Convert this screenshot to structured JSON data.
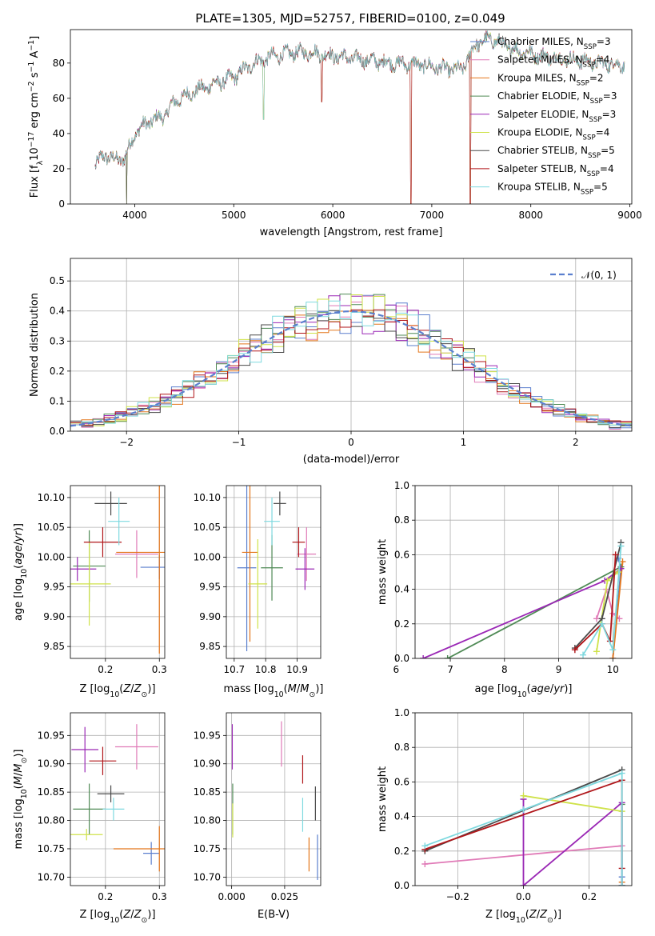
{
  "figure": {
    "title": "PLATE=1305, MJD=52757, FIBERID=0100, z=0.049"
  },
  "chart_data": [
    {
      "id": "spectrum",
      "type": "line",
      "xlabel": "wavelength [Angstrom, rest frame]",
      "ylabel": "Flux [f_λ 10^-17 erg cm^-2 s^-1 A^-1]",
      "xlim": [
        3350,
        9020
      ],
      "ylim": [
        0,
        99
      ],
      "xticks": [
        4000,
        5000,
        6000,
        7000,
        8000,
        9000
      ],
      "yticks": [
        0,
        20,
        40,
        60,
        80
      ],
      "grid": false,
      "legend_position": "right",
      "continuum": [
        [
          3600,
          22
        ],
        [
          3700,
          28
        ],
        [
          3800,
          25
        ],
        [
          3900,
          26
        ],
        [
          4000,
          40
        ],
        [
          4100,
          45
        ],
        [
          4200,
          48
        ],
        [
          4300,
          50
        ],
        [
          4400,
          58
        ],
        [
          4600,
          64
        ],
        [
          4800,
          68
        ],
        [
          5000,
          72
        ],
        [
          5200,
          80
        ],
        [
          5400,
          84
        ],
        [
          5600,
          86
        ],
        [
          5800,
          86
        ],
        [
          6000,
          84
        ],
        [
          6300,
          82
        ],
        [
          6600,
          80
        ],
        [
          6900,
          79
        ],
        [
          7100,
          77
        ],
        [
          7300,
          76
        ],
        [
          7450,
          91
        ],
        [
          7600,
          94
        ],
        [
          7800,
          88
        ],
        [
          8100,
          84
        ],
        [
          8400,
          82
        ],
        [
          8700,
          80
        ],
        [
          8950,
          79
        ]
      ],
      "dips": [
        [
          3918,
          0
        ],
        [
          5300,
          48
        ],
        [
          5890,
          58
        ],
        [
          6790,
          0
        ],
        [
          7390,
          0
        ]
      ],
      "series": [
        {
          "name": "Chabrier MILES",
          "nssp": "3",
          "color": "#5b7fce"
        },
        {
          "name": "Salpeter MILES",
          "nssp": "4",
          "color": "#e07ab7"
        },
        {
          "name": "Kroupa MILES",
          "nssp": "2",
          "color": "#e4761b"
        },
        {
          "name": "Chabrier ELODIE",
          "nssp": "3",
          "color": "#4f8a55"
        },
        {
          "name": "Salpeter ELODIE",
          "nssp": "3",
          "color": "#9a27b5"
        },
        {
          "name": "Kroupa ELODIE",
          "nssp": "4",
          "color": "#cfe24a"
        },
        {
          "name": "Chabrier STELIB",
          "nssp": "5",
          "color": "#4a4a4a"
        },
        {
          "name": "Salpeter STELIB",
          "nssp": "4",
          "color": "#b0161a"
        },
        {
          "name": "Kroupa STELIB",
          "nssp": "5",
          "color": "#7ed9df"
        }
      ],
      "legend_subscript": "SSP"
    },
    {
      "id": "residuals",
      "type": "line",
      "xlabel": "(data-model)/error",
      "ylabel": "Normed distribution",
      "xlim": [
        -2.5,
        2.5
      ],
      "ylim": [
        0,
        0.575
      ],
      "xticks": [
        -2,
        -1,
        0,
        1,
        2
      ],
      "yticks": [
        0.0,
        0.1,
        0.2,
        0.3,
        0.4,
        0.5
      ],
      "grid": true,
      "legend_position": "top-right",
      "gaussian_label": "𝒩(0, 1)",
      "gaussian_color": "#5b7fce",
      "bin_width": 0.1
    },
    {
      "id": "age_vs_Z",
      "type": "scatter",
      "xlabel": "Z [log10(Z/Z⊙)]",
      "ylabel": "age [log10(age/yr)]",
      "xlim": [
        0.135,
        0.31
      ],
      "ylim": [
        9.83,
        10.12
      ],
      "xticks": [
        0.2,
        0.3
      ],
      "yticks": [
        9.85,
        9.9,
        9.95,
        10.0,
        10.05,
        10.1
      ],
      "grid": true,
      "points": [
        {
          "x": 0.3,
          "y": 9.983,
          "xerr": 0.035,
          "yerr": 0.02,
          "color": "#5b7fce"
        },
        {
          "x": 0.258,
          "y": 10.005,
          "xerr": 0.04,
          "yerr": 0.04,
          "color": "#e07ab7"
        },
        {
          "x": 0.3,
          "y": 10.008,
          "xerr": 0.08,
          "yerr": 0.17,
          "color": "#e4761b"
        },
        {
          "x": 0.17,
          "y": 9.985,
          "xerr": 0.03,
          "yerr": 0.06,
          "color": "#4f8a55"
        },
        {
          "x": 0.148,
          "y": 9.98,
          "xerr": 0.035,
          "yerr": 0.02,
          "color": "#9a27b5"
        },
        {
          "x": 0.17,
          "y": 9.955,
          "xerr": 0.04,
          "yerr": 0.07,
          "color": "#cfe24a"
        },
        {
          "x": 0.21,
          "y": 10.09,
          "xerr": 0.03,
          "yerr": 0.02,
          "color": "#4a4a4a"
        },
        {
          "x": 0.195,
          "y": 10.025,
          "xerr": 0.035,
          "yerr": 0.025,
          "color": "#b0161a"
        },
        {
          "x": 0.225,
          "y": 10.06,
          "xerr": 0.02,
          "yerr": 0.04,
          "color": "#7ed9df"
        }
      ]
    },
    {
      "id": "age_vs_mass",
      "type": "scatter",
      "xlabel": "mass [log10(M/M⊙)]",
      "ylabel": "",
      "xlim": [
        10.675,
        10.975
      ],
      "ylim": [
        9.83,
        10.12
      ],
      "xticks": [
        10.7,
        10.8,
        10.9
      ],
      "yticks": [
        9.85,
        9.9,
        9.95,
        10.0,
        10.05,
        10.1
      ],
      "ytick_labels_visible": true,
      "grid": true,
      "points": [
        {
          "x": 10.74,
          "y": 9.982,
          "xerr": 0.03,
          "yerr": 0.14,
          "color": "#5b7fce"
        },
        {
          "x": 10.93,
          "y": 10.005,
          "xerr": 0.03,
          "yerr": 0.045,
          "color": "#e07ab7"
        },
        {
          "x": 10.75,
          "y": 10.008,
          "xerr": 0.025,
          "yerr": 0.15,
          "color": "#e4761b"
        },
        {
          "x": 10.82,
          "y": 9.982,
          "xerr": 0.035,
          "yerr": 0.055,
          "color": "#4f8a55"
        },
        {
          "x": 10.925,
          "y": 9.98,
          "xerr": 0.03,
          "yerr": 0.035,
          "color": "#9a27b5"
        },
        {
          "x": 10.775,
          "y": 9.955,
          "xerr": 0.03,
          "yerr": 0.075,
          "color": "#cfe24a"
        },
        {
          "x": 10.845,
          "y": 10.09,
          "xerr": 0.02,
          "yerr": 0.02,
          "color": "#4a4a4a"
        },
        {
          "x": 10.905,
          "y": 10.025,
          "xerr": 0.02,
          "yerr": 0.025,
          "color": "#b0161a"
        },
        {
          "x": 10.82,
          "y": 10.06,
          "xerr": 0.025,
          "yerr": 0.04,
          "color": "#7ed9df"
        }
      ]
    },
    {
      "id": "weight_vs_age",
      "type": "line",
      "xlabel": "age [log10(age/yr)]",
      "ylabel": "mass weight",
      "xlim": [
        6.35,
        10.35
      ],
      "ylim": [
        0,
        1.0
      ],
      "xticks": [
        6,
        7,
        8,
        9,
        10
      ],
      "yticks": [
        0.0,
        0.2,
        0.4,
        0.6,
        0.8,
        1.0
      ],
      "grid": true,
      "series": [
        {
          "color": "#5b7fce",
          "points": [
            [
              10.0,
              0.0
            ],
            [
              10.15,
              0.52
            ],
            [
              10.1,
              0.58
            ]
          ]
        },
        {
          "color": "#e07ab7",
          "points": [
            [
              9.7,
              0.23
            ],
            [
              9.88,
              0.4
            ],
            [
              10.0,
              0.26
            ],
            [
              10.12,
              0.23
            ]
          ]
        },
        {
          "color": "#e4761b",
          "points": [
            [
              10.0,
              0.0
            ],
            [
              10.18,
              0.56
            ]
          ]
        },
        {
          "color": "#4f8a55",
          "points": [
            [
              6.95,
              0.0
            ],
            [
              10.15,
              0.53
            ]
          ]
        },
        {
          "color": "#9a27b5",
          "points": [
            [
              6.5,
              0.0
            ],
            [
              9.85,
              0.45
            ],
            [
              10.15,
              0.52
            ]
          ]
        },
        {
          "color": "#cfe24a",
          "points": [
            [
              9.7,
              0.04
            ],
            [
              9.9,
              0.45
            ],
            [
              10.1,
              0.5
            ]
          ]
        },
        {
          "color": "#4a4a4a",
          "points": [
            [
              9.3,
              0.06
            ],
            [
              9.8,
              0.23
            ],
            [
              10.15,
              0.67
            ]
          ]
        },
        {
          "color": "#b0161a",
          "points": [
            [
              9.3,
              0.05
            ],
            [
              9.8,
              0.2
            ],
            [
              9.95,
              0.1
            ],
            [
              10.05,
              0.6
            ]
          ]
        },
        {
          "color": "#7ed9df",
          "points": [
            [
              9.45,
              0.02
            ],
            [
              9.8,
              0.2
            ],
            [
              10.0,
              0.05
            ],
            [
              10.15,
              0.65
            ]
          ]
        }
      ]
    },
    {
      "id": "mass_vs_Z",
      "type": "scatter",
      "xlabel": "Z [log10(Z/Z⊙)]",
      "ylabel": "mass [log10(M/M⊙)]",
      "xlim": [
        0.135,
        0.31
      ],
      "ylim": [
        10.685,
        10.99
      ],
      "xticks": [
        0.2,
        0.3
      ],
      "yticks": [
        10.7,
        10.75,
        10.8,
        10.85,
        10.9,
        10.95
      ],
      "grid": true,
      "points": [
        {
          "x": 0.285,
          "y": 10.742,
          "xerr": 0.015,
          "yerr": 0.02,
          "color": "#5b7fce"
        },
        {
          "x": 0.258,
          "y": 10.93,
          "xerr": 0.04,
          "yerr": 0.04,
          "color": "#e07ab7"
        },
        {
          "x": 0.3,
          "y": 10.75,
          "xerr": 0.085,
          "yerr": 0.04,
          "color": "#e4761b"
        },
        {
          "x": 0.17,
          "y": 10.82,
          "xerr": 0.03,
          "yerr": 0.045,
          "color": "#4f8a55"
        },
        {
          "x": 0.162,
          "y": 10.925,
          "xerr": 0.025,
          "yerr": 0.04,
          "color": "#9a27b5"
        },
        {
          "x": 0.165,
          "y": 10.775,
          "xerr": 0.03,
          "yerr": 0.01,
          "color": "#cfe24a"
        },
        {
          "x": 0.21,
          "y": 10.847,
          "xerr": 0.025,
          "yerr": 0.015,
          "color": "#4a4a4a"
        },
        {
          "x": 0.195,
          "y": 10.905,
          "xerr": 0.025,
          "yerr": 0.025,
          "color": "#b0161a"
        },
        {
          "x": 0.215,
          "y": 10.82,
          "xerr": 0.02,
          "yerr": 0.02,
          "color": "#7ed9df"
        }
      ]
    },
    {
      "id": "mass_vs_ebv",
      "type": "scatter",
      "xlabel": "E(B-V)",
      "ylabel": "",
      "xlim": [
        -0.0025,
        0.042
      ],
      "ylim": [
        10.685,
        10.99
      ],
      "xticks": [
        0.0,
        0.025
      ],
      "yticks": [
        10.7,
        10.75,
        10.8,
        10.85,
        10.9,
        10.95
      ],
      "ytick_labels_visible": true,
      "grid": true,
      "points": [
        {
          "x": 0.0405,
          "y": 10.735,
          "xerr": 0.0,
          "yerr": 0.04,
          "color": "#5b7fce"
        },
        {
          "x": 0.0235,
          "y": 10.935,
          "xerr": 0.0,
          "yerr": 0.04,
          "color": "#e07ab7"
        },
        {
          "x": 0.0365,
          "y": 10.74,
          "xerr": 0.0,
          "yerr": 0.03,
          "color": "#e4761b"
        },
        {
          "x": 0.0005,
          "y": 10.82,
          "xerr": 0.0,
          "yerr": 0.045,
          "color": "#4f8a55"
        },
        {
          "x": 0.0003,
          "y": 10.93,
          "xerr": 0.0,
          "yerr": 0.04,
          "color": "#9a27b5"
        },
        {
          "x": 0.0005,
          "y": 10.8,
          "xerr": 0.0,
          "yerr": 0.03,
          "color": "#cfe24a"
        },
        {
          "x": 0.0395,
          "y": 10.83,
          "xerr": 0.0,
          "yerr": 0.03,
          "color": "#4a4a4a"
        },
        {
          "x": 0.0335,
          "y": 10.89,
          "xerr": 0.0,
          "yerr": 0.025,
          "color": "#b0161a"
        },
        {
          "x": 0.0335,
          "y": 10.81,
          "xerr": 0.0,
          "yerr": 0.03,
          "color": "#7ed9df"
        }
      ]
    },
    {
      "id": "weight_vs_Z",
      "type": "line",
      "xlabel": "Z [log10(Z/Z⊙)]",
      "ylabel": "mass weight",
      "xlim": [
        -0.33,
        0.33
      ],
      "ylim": [
        0,
        1.0
      ],
      "xticks": [
        -0.2,
        0.0,
        0.2
      ],
      "yticks": [
        0.0,
        0.2,
        0.4,
        0.6,
        0.8,
        1.0
      ],
      "grid": true,
      "series": [
        {
          "color": "#5b7fce",
          "points": [
            [
              0.3,
              0.0
            ],
            [
              0.3,
              0.05
            ]
          ]
        },
        {
          "color": "#e07ab7",
          "points": [
            [
              -0.3,
              0.125
            ],
            [
              0.3,
              0.23
            ]
          ]
        },
        {
          "color": "#e4761b",
          "points": [
            [
              0.3,
              0.0
            ],
            [
              0.3,
              0.02
            ]
          ]
        },
        {
          "color": "#4f8a55",
          "points": [
            [
              0.3,
              0.0
            ],
            [
              0.3,
              0.47
            ]
          ]
        },
        {
          "color": "#9a27b5",
          "points": [
            [
              0.0,
              0.5
            ],
            [
              0.0,
              0.0
            ],
            [
              0.3,
              0.48
            ],
            [
              0.3,
              0.0
            ]
          ]
        },
        {
          "color": "#cfe24a",
          "points": [
            [
              0.0,
              0.52
            ],
            [
              0.3,
              0.43
            ]
          ]
        },
        {
          "color": "#4a4a4a",
          "points": [
            [
              -0.3,
              0.2
            ],
            [
              0.3,
              0.67
            ]
          ]
        },
        {
          "color": "#b0161a",
          "points": [
            [
              -0.3,
              0.21
            ],
            [
              0.3,
              0.61
            ],
            [
              0.3,
              0.1
            ]
          ]
        },
        {
          "color": "#7ed9df",
          "points": [
            [
              -0.3,
              0.23
            ],
            [
              0.0,
              0.44
            ],
            [
              0.3,
              0.65
            ],
            [
              0.3,
              0.0
            ]
          ]
        }
      ]
    }
  ]
}
